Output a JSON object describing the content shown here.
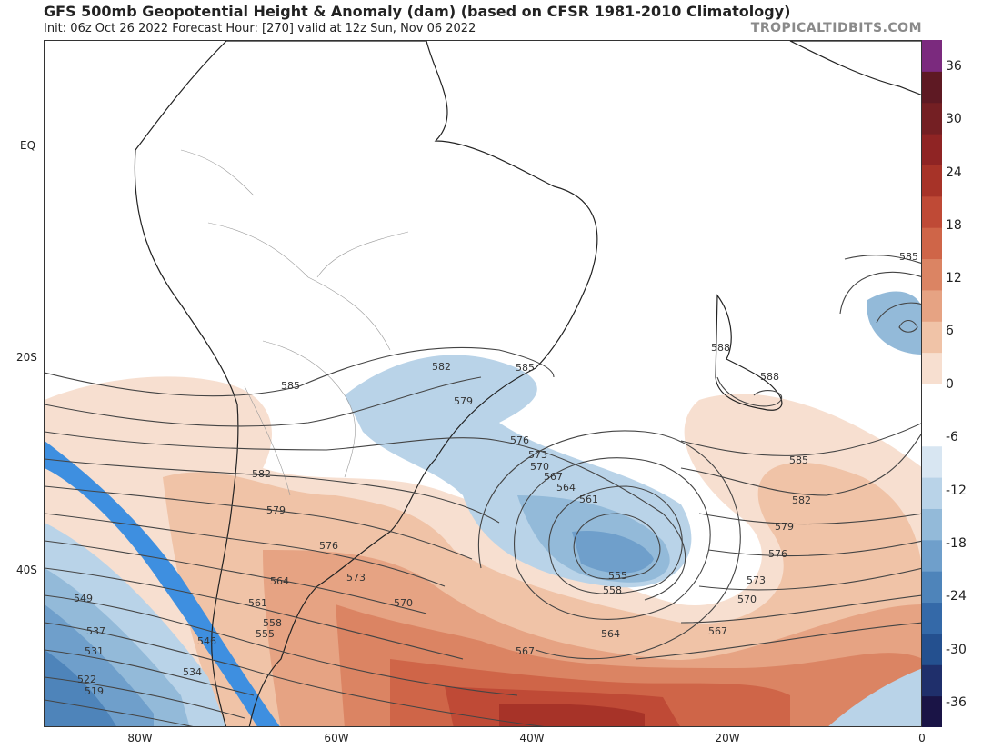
{
  "header": {
    "title": "GFS 500mb Geopotential Height & Anomaly (dam) (based on CFSR 1981-2010 Climatology)",
    "subtitle": "Init: 06z Oct 26 2022   Forecast Hour: [270]   valid at 12z Sun, Nov 06 2022",
    "brand": "TROPICALTIDBITS.COM"
  },
  "axes": {
    "lat_labels": [
      "EQ",
      "20S",
      "40S"
    ],
    "lon_labels": [
      "80W",
      "60W",
      "40W",
      "20W",
      "0"
    ]
  },
  "colorbar": {
    "ticks": [
      "36",
      "30",
      "24",
      "18",
      "12",
      "6",
      "0",
      "-6",
      "-12",
      "-18",
      "-24",
      "-30",
      "-36"
    ],
    "colors": [
      "#1a1446",
      "#1f2f6b",
      "#24508f",
      "#3469a8",
      "#4e84ba",
      "#6f9fcb",
      "#93bad9",
      "#b9d3e8",
      "#d8e6f2",
      "#ffffff",
      "#ffffff",
      "#f7dfd0",
      "#f0c3a7",
      "#e6a383",
      "#db8463",
      "#cf6548",
      "#bf4a36",
      "#a73328",
      "#8f2424",
      "#741f23",
      "#5e1923",
      "#7b2a7e"
    ]
  },
  "contour_labels": [
    "585",
    "582",
    "579",
    "576",
    "573",
    "570",
    "567",
    "564",
    "561",
    "558",
    "555",
    "549",
    "537",
    "531",
    "522",
    "519",
    "546",
    "534",
    "588",
    "588",
    "585",
    "582",
    "579",
    "576",
    "573",
    "570",
    "567",
    "564",
    "561",
    "558",
    "555",
    "564",
    "567",
    "570",
    "573",
    "576",
    "579",
    "582",
    "585",
    "585",
    "582",
    "579",
    "576",
    "573",
    "570",
    "567",
    "564",
    "561",
    "558"
  ]
}
